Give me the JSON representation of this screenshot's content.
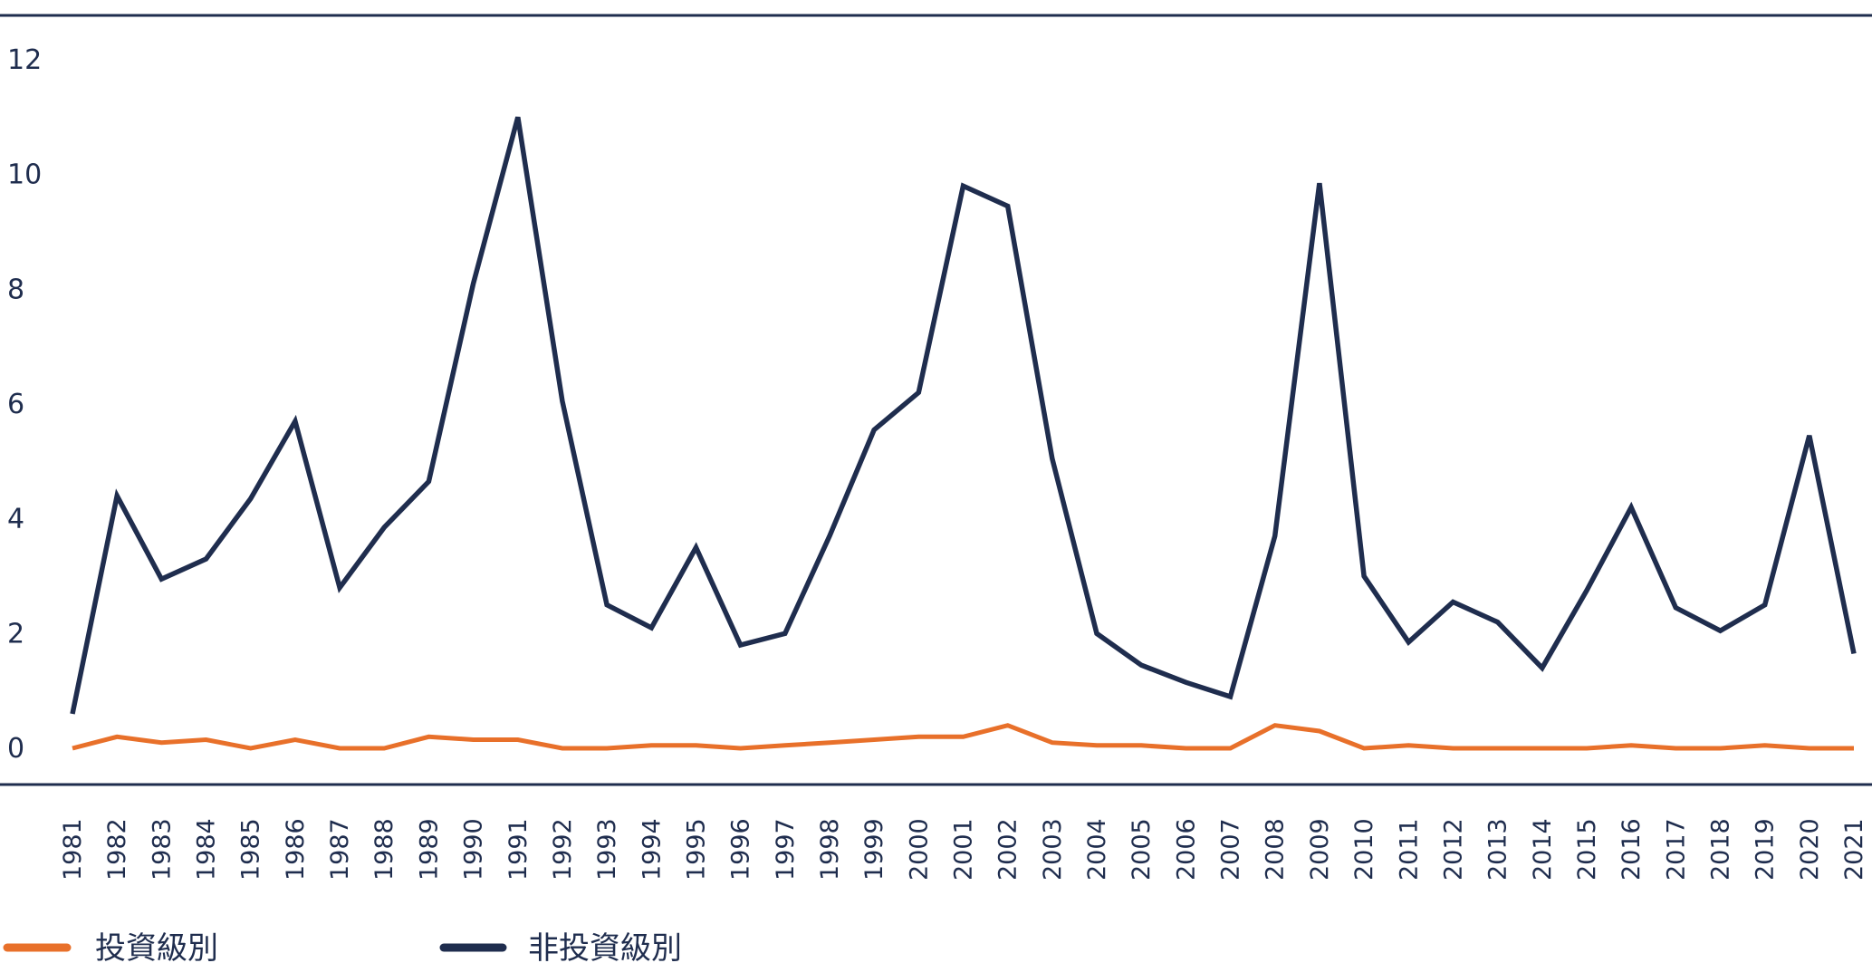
{
  "chart_data": {
    "type": "line",
    "title": "",
    "xlabel": "",
    "ylabel": "",
    "ylim": [
      0,
      12
    ],
    "yticks": [
      "0",
      "2",
      "4",
      "6",
      "8",
      "10",
      "12"
    ],
    "categories": [
      "1981",
      "1982",
      "1983",
      "1984",
      "1985",
      "1986",
      "1987",
      "1988",
      "1989",
      "1990",
      "1991",
      "1992",
      "1993",
      "1994",
      "1995",
      "1996",
      "1997",
      "1998",
      "1999",
      "2000",
      "2001",
      "2002",
      "2003",
      "2004",
      "2005",
      "2006",
      "2007",
      "2008",
      "2009",
      "2010",
      "2011",
      "2012",
      "2013",
      "2014",
      "2015",
      "2016",
      "2017",
      "2018",
      "2019",
      "2020",
      "2021"
    ],
    "grid": false,
    "legend_position": "bottom-left",
    "series": [
      {
        "name": "投資級別",
        "color": "#e8702a",
        "values": [
          0.0,
          0.2,
          0.1,
          0.15,
          0.0,
          0.15,
          0.0,
          0.0,
          0.2,
          0.15,
          0.15,
          0.0,
          0.0,
          0.05,
          0.05,
          0.0,
          0.05,
          0.1,
          0.15,
          0.2,
          0.2,
          0.4,
          0.1,
          0.05,
          0.05,
          0.0,
          0.0,
          0.4,
          0.3,
          0.0,
          0.05,
          0.0,
          0.0,
          0.0,
          0.0,
          0.05,
          0.0,
          0.0,
          0.05,
          0.0,
          0.0
        ]
      },
      {
        "name": "非投資級別",
        "color": "#1f2d4e",
        "values": [
          0.6,
          4.4,
          2.95,
          3.3,
          4.35,
          5.7,
          2.8,
          3.85,
          4.65,
          8.1,
          11.0,
          6.05,
          2.5,
          2.1,
          3.5,
          1.8,
          2.0,
          3.7,
          5.55,
          6.2,
          9.8,
          9.45,
          5.05,
          2.0,
          1.45,
          1.15,
          0.9,
          3.7,
          9.85,
          3.0,
          1.85,
          2.55,
          2.2,
          1.4,
          2.75,
          4.2,
          2.45,
          2.05,
          2.5,
          5.45,
          1.65
        ]
      }
    ]
  }
}
